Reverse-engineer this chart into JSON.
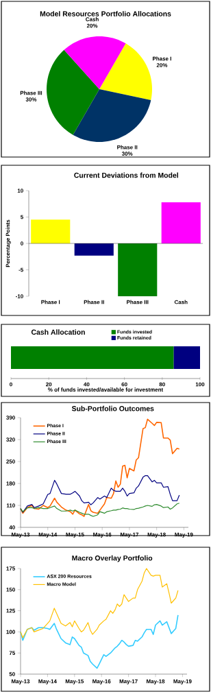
{
  "chart_data": [
    {
      "type": "pie",
      "title": "Model Resources Portfolio Allocations",
      "categories": [
        "Phase I",
        "Phase II",
        "Phase III",
        "Cash"
      ],
      "values": [
        20,
        30,
        30,
        20
      ],
      "colors": [
        "#ffff00",
        "#003366",
        "#008000",
        "#ff00ff"
      ],
      "value_labels": [
        "20%",
        "30%",
        "30%",
        "20%"
      ]
    },
    {
      "type": "bar",
      "title": "Current Deviations from Model",
      "ylabel": "Percentage Points",
      "categories": [
        "Phase I",
        "Phase II",
        "Phase III",
        "Cash"
      ],
      "values": [
        4.5,
        -2.3,
        -10,
        7.8
      ],
      "colors": [
        "#ffff00",
        "#000080",
        "#008000",
        "#ff00ff"
      ],
      "ylim": [
        -10,
        10
      ],
      "yticks": [
        -10,
        -5,
        0,
        5,
        10
      ]
    },
    {
      "type": "bar",
      "orientation": "horizontal",
      "stacked": true,
      "title": "Cash Allocation",
      "xlabel": "% of funds invested/available for investment",
      "categories": [
        null
      ],
      "legend": "top",
      "series": [
        {
          "name": "Funds invested",
          "color": "#008000",
          "values": [
            86
          ]
        },
        {
          "name": "Funds retained",
          "color": "#000080",
          "values": [
            14
          ]
        }
      ],
      "xlim": [
        0,
        100
      ],
      "xticks": [
        0,
        20,
        40,
        60,
        80,
        100
      ]
    },
    {
      "type": "line",
      "title": "Sub-Portfolio Outcomes",
      "legend": "top left",
      "x": [
        "2013-05",
        "2013-06",
        "2013-08",
        "2013-10",
        "2013-11",
        "2014-01",
        "2014-03",
        "2014-05",
        "2014-06",
        "2014-08",
        "2014-09",
        "2014-11",
        "2015-01",
        "2015-03",
        "2015-04",
        "2015-05",
        "2015-07",
        "2015-08",
        "2015-09",
        "2015-11",
        "2015-12",
        "2016-01",
        "2016-03",
        "2016-04",
        "2016-06",
        "2016-07",
        "2016-09",
        "2016-10",
        "2016-11",
        "2016-12",
        "2017-01",
        "2017-02",
        "2017-03",
        "2017-04",
        "2017-05",
        "2017-07",
        "2017-08",
        "2017-09",
        "2017-11",
        "2017-12",
        "2018-01",
        "2018-03",
        "2018-04",
        "2018-05",
        "2018-07",
        "2018-08",
        "2018-10",
        "2018-11",
        "2018-12",
        "2019-02",
        "2019-03"
      ],
      "series": [
        {
          "name": "Phase I",
          "color": "#ff6600",
          "values": [
            100,
            85,
            103,
            110,
            100,
            98,
            110,
            103,
            108,
            133,
            120,
            105,
            95,
            90,
            82,
            95,
            83,
            80,
            75,
            113,
            93,
            88,
            85,
            95,
            115,
            135,
            133,
            148,
            188,
            168,
            178,
            235,
            238,
            198,
            228,
            220,
            255,
            262,
            355,
            358,
            385,
            372,
            365,
            375,
            374,
            325,
            325,
            318,
            275,
            292,
            290
          ]
        },
        {
          "name": "Phase II",
          "color": "#000080",
          "values": [
            100,
            88,
            108,
            113,
            103,
            108,
            115,
            145,
            148,
            190,
            178,
            148,
            146,
            146,
            150,
            155,
            140,
            125,
            118,
            120,
            112,
            118,
            135,
            130,
            140,
            135,
            165,
            158,
            155,
            155,
            155,
            165,
            155,
            140,
            148,
            150,
            165,
            172,
            200,
            205,
            205,
            185,
            190,
            182,
            182,
            168,
            170,
            145,
            125,
            125,
            143
          ]
        },
        {
          "name": "Phase III",
          "color": "#2e8b2e",
          "values": [
            100,
            90,
            102,
            103,
            100,
            103,
            100,
            100,
            103,
            108,
            100,
            92,
            92,
            95,
            92,
            95,
            88,
            85,
            82,
            82,
            78,
            75,
            80,
            90,
            85,
            90,
            93,
            95,
            95,
            97,
            98,
            102,
            100,
            100,
            98,
            97,
            100,
            101,
            105,
            108,
            110,
            107,
            112,
            113,
            108,
            103,
            105,
            98,
            102,
            115,
            117
          ]
        }
      ],
      "xlim": [
        "2013-05",
        "2019-07"
      ],
      "xticks": [
        {
          "value": "2013-05",
          "label": "May-13"
        },
        {
          "value": "2014-05",
          "label": "May-14"
        },
        {
          "value": "2015-05",
          "label": "May-15"
        },
        {
          "value": "2016-05",
          "label": "May-16"
        },
        {
          "value": "2017-05",
          "label": "May-17"
        },
        {
          "value": "2018-05",
          "label": "May-18"
        },
        {
          "value": "2019-05",
          "label": "May-19"
        }
      ],
      "ylim": [
        40,
        390
      ],
      "yticks": [
        40,
        110,
        180,
        250,
        320,
        390
      ]
    },
    {
      "type": "line",
      "title": "Macro Overlay Portfolio",
      "legend": "top left",
      "x": [
        "2013-05",
        "2013-06",
        "2013-08",
        "2013-10",
        "2013-11",
        "2014-01",
        "2014-03",
        "2014-05",
        "2014-06",
        "2014-08",
        "2014-09",
        "2014-11",
        "2015-01",
        "2015-03",
        "2015-04",
        "2015-05",
        "2015-07",
        "2015-08",
        "2015-09",
        "2015-11",
        "2015-12",
        "2016-01",
        "2016-03",
        "2016-04",
        "2016-06",
        "2016-07",
        "2016-09",
        "2016-10",
        "2016-11",
        "2016-12",
        "2017-01",
        "2017-02",
        "2017-03",
        "2017-04",
        "2017-05",
        "2017-07",
        "2017-08",
        "2017-09",
        "2017-11",
        "2017-12",
        "2018-01",
        "2018-03",
        "2018-04",
        "2018-05",
        "2018-07",
        "2018-08",
        "2018-10",
        "2018-11",
        "2018-12",
        "2019-02",
        "2019-03"
      ],
      "series": [
        {
          "name": "ASX 200 Resources",
          "color": "#33ccff",
          "values": [
            100,
            90,
            103,
            105,
            102,
            105,
            105,
            104,
            103,
            110,
            103,
            92,
            87,
            85,
            94,
            92,
            84,
            82,
            75,
            72,
            65,
            62,
            57,
            62,
            73,
            71,
            75,
            78,
            81,
            83,
            86,
            90,
            88,
            85,
            83,
            84,
            90,
            89,
            94,
            99,
            103,
            103,
            97,
            108,
            113,
            108,
            112,
            105,
            98,
            104,
            120
          ]
        },
        {
          "name": "Macro Model",
          "color": "#ffc000",
          "values": [
            100,
            93,
            103,
            105,
            100,
            102,
            104,
            110,
            113,
            128,
            122,
            110,
            107,
            111,
            106,
            113,
            104,
            100,
            102,
            111,
            102,
            97,
            103,
            108,
            113,
            115,
            125,
            122,
            126,
            133,
            130,
            133,
            144,
            140,
            136,
            140,
            140,
            150,
            160,
            170,
            175,
            167,
            166,
            167,
            167,
            153,
            157,
            146,
            134,
            140,
            149
          ]
        }
      ],
      "xlim": [
        "2013-05",
        "2019-07"
      ],
      "xticks": [
        {
          "value": "2013-05",
          "label": "May-13"
        },
        {
          "value": "2014-05",
          "label": "May-14"
        },
        {
          "value": "2015-05",
          "label": "May-15"
        },
        {
          "value": "2016-05",
          "label": "May-16"
        },
        {
          "value": "2017-05",
          "label": "May-17"
        },
        {
          "value": "2018-05",
          "label": "May-18"
        },
        {
          "value": "2019-05",
          "label": "May-19"
        }
      ],
      "ylim": [
        50,
        175
      ],
      "yticks": [
        50,
        75,
        100,
        125,
        150,
        175
      ]
    }
  ]
}
